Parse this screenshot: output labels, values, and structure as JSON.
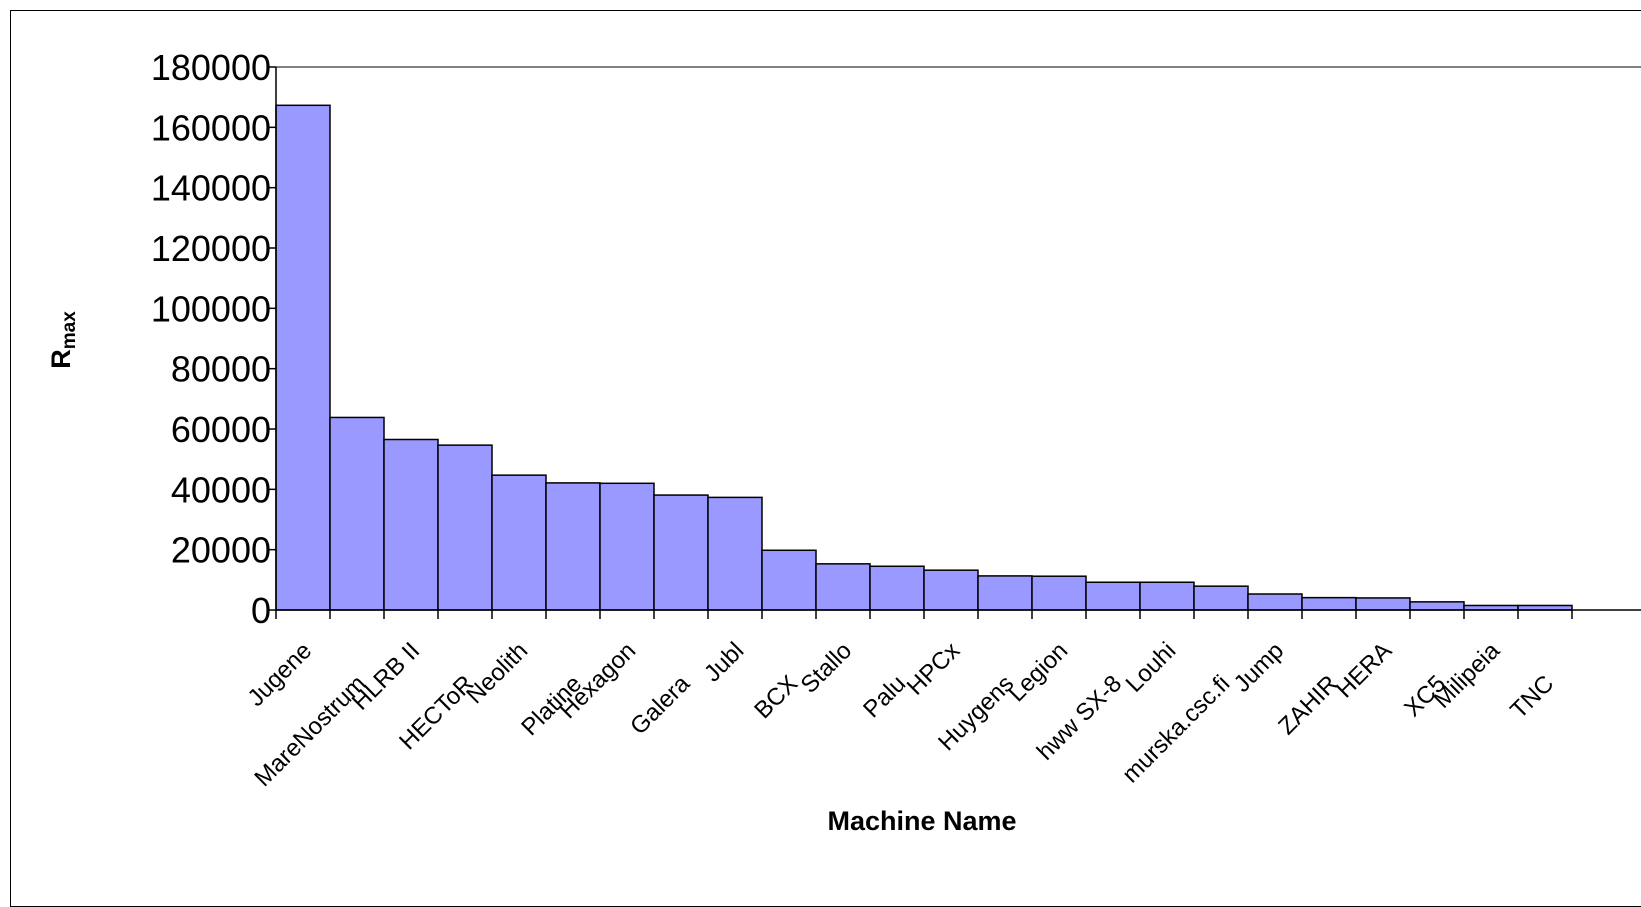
{
  "chart_data": {
    "type": "bar",
    "title": "",
    "xlabel": "Machine Name",
    "ylabel": {
      "main": "R",
      "subscript": "max"
    },
    "ylim": [
      0,
      180000
    ],
    "yticks": [
      "0",
      "20000",
      "40000",
      "60000",
      "80000",
      "100000",
      "120000",
      "140000",
      "160000",
      "180000"
    ],
    "grid": false,
    "legend": "none",
    "bar_color": "#9999ff",
    "categories": [
      "Jugene",
      "MareNostrum",
      "HLRB II",
      "HECToR",
      "Neolith",
      "Platine",
      "Hexagon",
      "Galera",
      "Jubl",
      "BCX",
      "Stallo",
      "Palu",
      "HPCx",
      "Huygens",
      "Legion",
      "hww SX-8",
      "Louhi",
      "murska.csc.fi",
      "Jump",
      "ZAHIR",
      "HERA",
      "XC5",
      "Milipeia",
      "TNC"
    ],
    "values": [
      167300,
      63830,
      56520,
      54650,
      44700,
      42130,
      42000,
      38100,
      37330,
      19800,
      15300,
      14500,
      13200,
      11300,
      11200,
      9200,
      9200,
      7900,
      5300,
      4100,
      4000,
      2700,
      1500,
      1500
    ]
  }
}
